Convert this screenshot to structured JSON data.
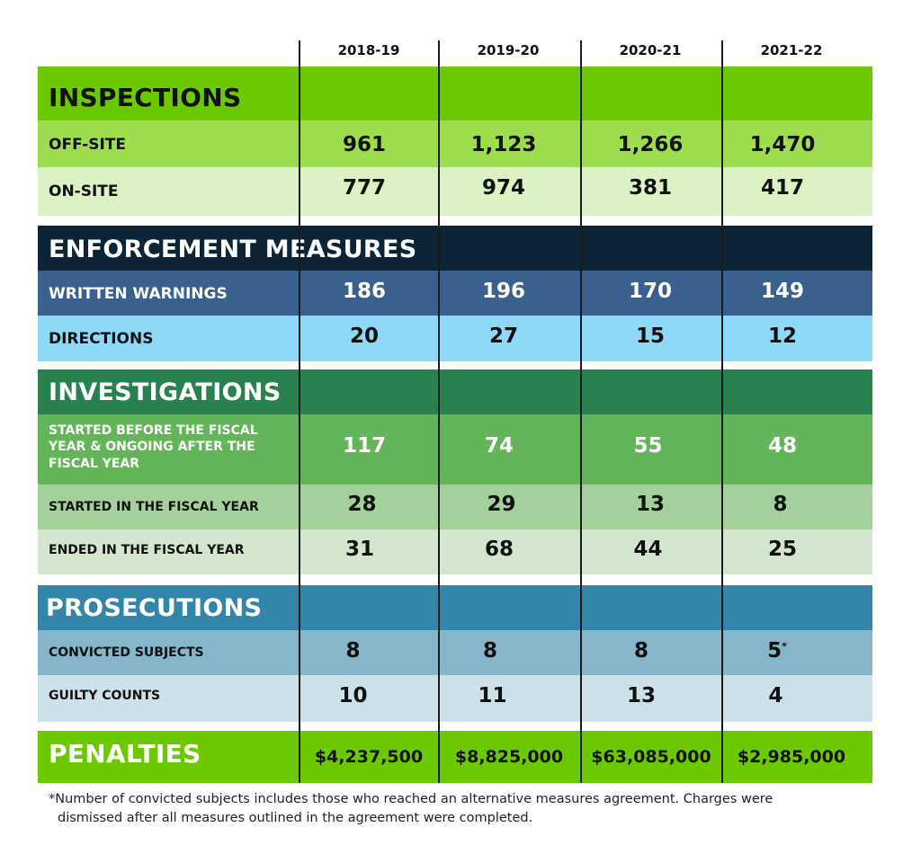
{
  "years": [
    "2018-19",
    "2019-20",
    "2020-21",
    "2021-22"
  ],
  "colors": {
    "lime": "#6cc900",
    "lime_mid": "#9ddd4e",
    "lime_light": "#ddf2c4",
    "navy": "#0d2436",
    "blue_dark": "#3a6090",
    "sky": "#8ed8f8",
    "green_dark": "#2a8150",
    "green_mid": "#64b45a",
    "green_soft": "#a4d09c",
    "green_pale": "#d4e6d0",
    "teal": "#3386aa",
    "steel": "#87b6cc",
    "steel_light": "#cde1ea"
  },
  "sections": {
    "inspections": {
      "title": "INSPECTIONS",
      "rows": [
        {
          "label": "OFF-SITE",
          "values": [
            "961",
            "1,123",
            "1,266",
            "1,470"
          ]
        },
        {
          "label": "ON-SITE",
          "values": [
            "777",
            "974",
            "381",
            "417"
          ]
        }
      ]
    },
    "enforcement": {
      "title": "ENFORCEMENT MEASURES",
      "rows": [
        {
          "label": "WRITTEN WARNINGS",
          "values": [
            "186",
            "196",
            "170",
            "149"
          ]
        },
        {
          "label": "DIRECTIONS",
          "values": [
            "20",
            "27",
            "15",
            "12"
          ]
        }
      ]
    },
    "investigations": {
      "title": "INVESTIGATIONS",
      "rows": [
        {
          "label_lines": [
            "STARTED BEFORE THE FISCAL",
            "YEAR & ONGOING AFTER THE",
            "FISCAL YEAR"
          ],
          "values": [
            "117",
            "74",
            "55",
            "48"
          ]
        },
        {
          "label": "STARTED IN THE FISCAL YEAR",
          "values": [
            "28",
            "29",
            "13",
            "8"
          ]
        },
        {
          "label": "ENDED IN THE FISCAL YEAR",
          "values": [
            "31",
            "68",
            "44",
            "25"
          ]
        }
      ]
    },
    "prosecutions": {
      "title": "PROSECUTIONS",
      "rows": [
        {
          "label": "CONVICTED SUBJECTS",
          "values": [
            "8",
            "8",
            "8",
            "5"
          ],
          "last_marker": "*"
        },
        {
          "label": "GUILTY COUNTS",
          "values": [
            "10",
            "11",
            "13",
            "4"
          ]
        }
      ]
    },
    "penalties": {
      "title": "PENALTIES",
      "values": [
        "$4,237,500",
        "$8,825,000",
        "$63,085,000",
        "$2,985,000"
      ]
    }
  },
  "footnote": {
    "line1": "*Number of convicted subjects includes those who reached an alternative measures agreement. Charges were",
    "line2": "dismissed after all measures outlined in the agreement were completed."
  },
  "chart_data": {
    "type": "table",
    "columns": [
      "2018-19",
      "2019-20",
      "2020-21",
      "2021-22"
    ],
    "groups": [
      {
        "name": "INSPECTIONS",
        "rows": [
          {
            "label": "OFF-SITE",
            "values": [
              961,
              1123,
              1266,
              1470
            ]
          },
          {
            "label": "ON-SITE",
            "values": [
              777,
              974,
              381,
              417
            ]
          }
        ]
      },
      {
        "name": "ENFORCEMENT MEASURES",
        "rows": [
          {
            "label": "WRITTEN WARNINGS",
            "values": [
              186,
              196,
              170,
              149
            ]
          },
          {
            "label": "DIRECTIONS",
            "values": [
              20,
              27,
              15,
              12
            ]
          }
        ]
      },
      {
        "name": "INVESTIGATIONS",
        "rows": [
          {
            "label": "STARTED BEFORE THE FISCAL YEAR & ONGOING AFTER THE FISCAL YEAR",
            "values": [
              117,
              74,
              55,
              48
            ]
          },
          {
            "label": "STARTED IN THE FISCAL YEAR",
            "values": [
              28,
              29,
              13,
              8
            ]
          },
          {
            "label": "ENDED IN THE FISCAL YEAR",
            "values": [
              31,
              68,
              44,
              25
            ]
          }
        ]
      },
      {
        "name": "PROSECUTIONS",
        "rows": [
          {
            "label": "CONVICTED SUBJECTS",
            "values": [
              8,
              8,
              8,
              5
            ]
          },
          {
            "label": "GUILTY COUNTS",
            "values": [
              10,
              11,
              13,
              4
            ]
          }
        ]
      },
      {
        "name": "PENALTIES",
        "rows": [
          {
            "label": "PENALTIES",
            "values": [
              4237500,
              8825000,
              63085000,
              2985000
            ]
          }
        ]
      }
    ]
  }
}
